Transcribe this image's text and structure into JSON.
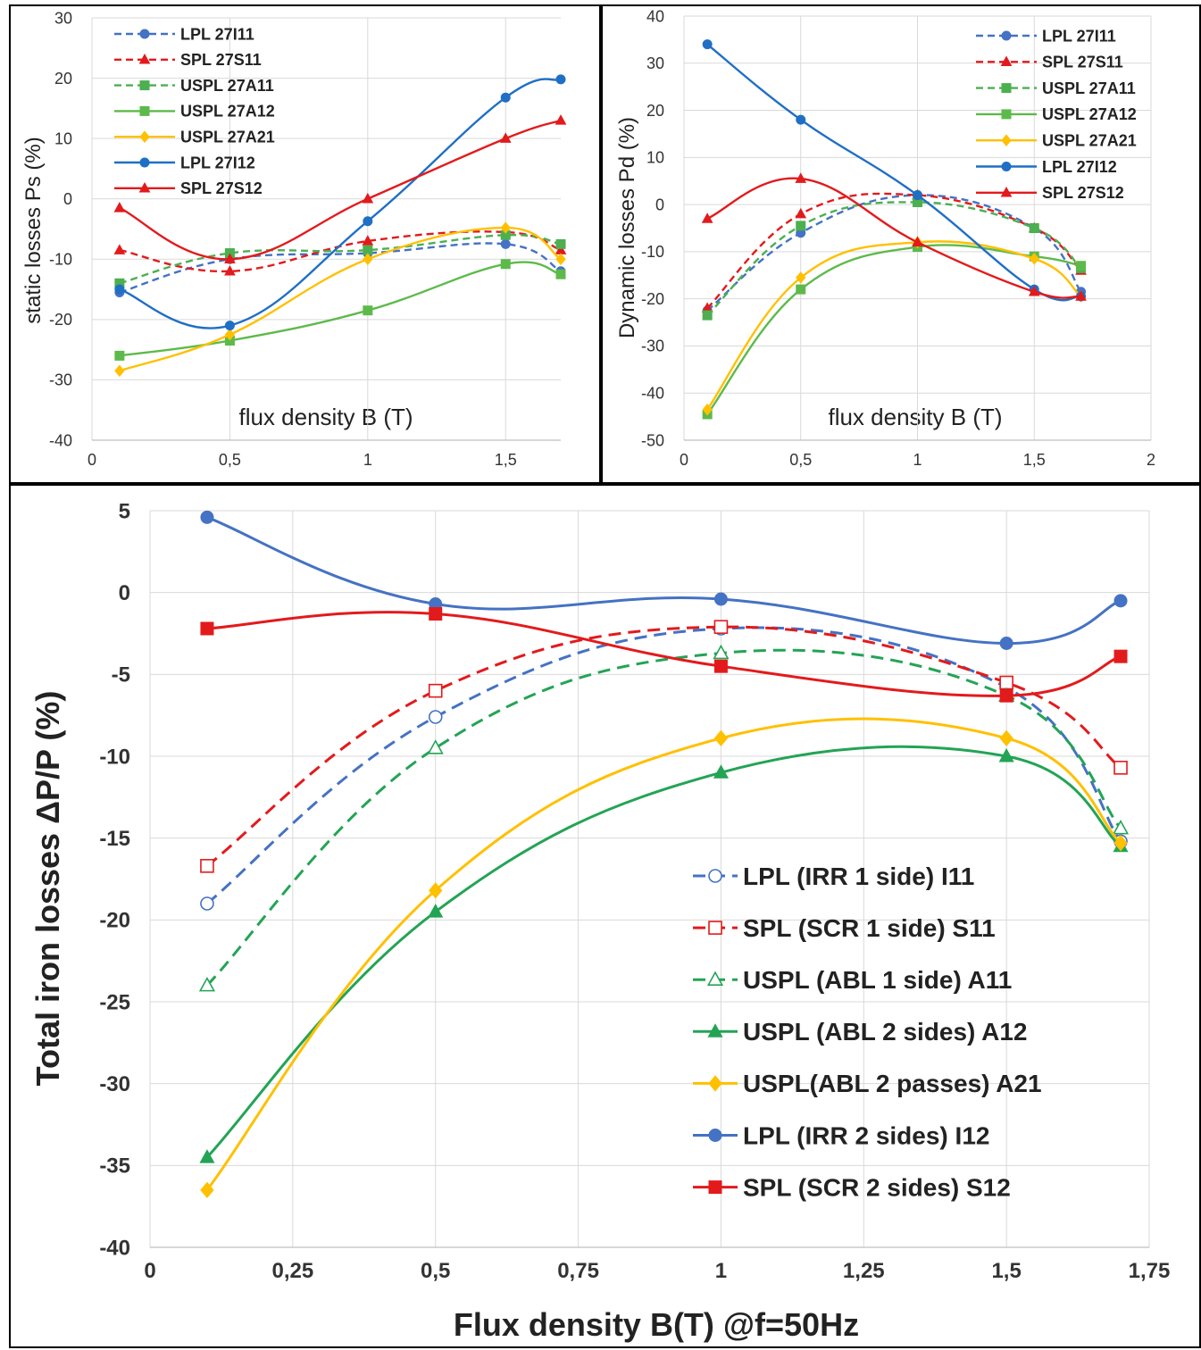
{
  "chart_data": [
    {
      "type": "line",
      "title": "",
      "xlabel": "flux density B (T)",
      "ylabel": "static losses Ps (%)",
      "xlim": [
        0,
        1.7
      ],
      "ylim": [
        -40,
        30
      ],
      "xticks": [
        0,
        0.5,
        1,
        1.5
      ],
      "xtick_labels": [
        "0",
        "0,5",
        "1",
        "1,5"
      ],
      "yticks": [
        -40,
        -30,
        -20,
        -10,
        0,
        10,
        20,
        30
      ],
      "ytick_labels": [
        "-40",
        "-30",
        "-20",
        "-10",
        "0",
        "10",
        "20",
        "30"
      ],
      "grid": true,
      "legend": "top-left",
      "series": [
        {
          "name": "LPL 27I11",
          "color": "#4472C4",
          "dash": "dash",
          "marker": "circle",
          "x": [
            0.1,
            0.5,
            1,
            1.5,
            1.7
          ],
          "y": [
            -15.5,
            -10,
            -9,
            -7.5,
            -12
          ]
        },
        {
          "name": "SPL 27S11",
          "color": "#E31A1C",
          "dash": "dash",
          "marker": "triangle",
          "x": [
            0.1,
            0.5,
            1,
            1.5,
            1.7
          ],
          "y": [
            -8.5,
            -12,
            -7,
            -5.5,
            -8.5
          ]
        },
        {
          "name": "USPL 27A11",
          "color": "#4CAF50",
          "dash": "dash",
          "marker": "square",
          "x": [
            0.1,
            0.5,
            1,
            1.5,
            1.7
          ],
          "y": [
            -14,
            -9,
            -8.5,
            -6,
            -7.5
          ]
        },
        {
          "name": "USPL 27A12",
          "color": "#5DBA4A",
          "dash": "solid",
          "marker": "square",
          "x": [
            0.1,
            0.5,
            1,
            1.5,
            1.7
          ],
          "y": [
            -26,
            -23.5,
            -18.5,
            -10.8,
            -12.5
          ]
        },
        {
          "name": "USPL 27A21",
          "color": "#FFC000",
          "dash": "solid",
          "marker": "diamond",
          "x": [
            0.1,
            0.5,
            1,
            1.5,
            1.7
          ],
          "y": [
            -28.5,
            -22.5,
            -10,
            -4.8,
            -10
          ]
        },
        {
          "name": "LPL 27I12",
          "color": "#1F6FC5",
          "dash": "solid",
          "marker": "circle",
          "x": [
            0.1,
            0.5,
            1,
            1.5,
            1.7
          ],
          "y": [
            -15,
            -21,
            -3.7,
            16.8,
            19.8
          ]
        },
        {
          "name": "SPL 27S12",
          "color": "#E31A1C",
          "dash": "solid",
          "marker": "triangle",
          "x": [
            0.1,
            0.5,
            1,
            1.5,
            1.7
          ],
          "y": [
            -1.5,
            -10,
            0,
            10,
            13
          ]
        }
      ]
    },
    {
      "type": "line",
      "title": "",
      "xlabel": "flux density B (T)",
      "ylabel": "Dynamic losses Pd (%)",
      "xlim": [
        0,
        2
      ],
      "ylim": [
        -50,
        40
      ],
      "xticks": [
        0,
        0.5,
        1,
        1.5,
        2
      ],
      "xtick_labels": [
        "0",
        "0,5",
        "1",
        "1,5",
        "2"
      ],
      "yticks": [
        -50,
        -40,
        -30,
        -20,
        -10,
        0,
        10,
        20,
        30,
        40
      ],
      "ytick_labels": [
        "-50",
        "-40",
        "-30",
        "-20",
        "-10",
        "0",
        "10",
        "20",
        "30",
        "40"
      ],
      "grid": true,
      "legend": "top-right",
      "series": [
        {
          "name": "LPL 27I11",
          "color": "#4472C4",
          "dash": "dash",
          "marker": "circle",
          "x": [
            0.1,
            0.5,
            1,
            1.5,
            1.7
          ],
          "y": [
            -22.5,
            -6,
            2,
            -5,
            -18.5
          ]
        },
        {
          "name": "SPL 27S11",
          "color": "#E31A1C",
          "dash": "dash",
          "marker": "triangle",
          "x": [
            0.1,
            0.5,
            1,
            1.5,
            1.7
          ],
          "y": [
            -22,
            -2,
            2,
            -5,
            -14
          ]
        },
        {
          "name": "USPL 27A11",
          "color": "#4CAF50",
          "dash": "dash",
          "marker": "square",
          "x": [
            0.1,
            0.5,
            1,
            1.5,
            1.7
          ],
          "y": [
            -23.5,
            -4.5,
            0.5,
            -5,
            -13.5
          ]
        },
        {
          "name": "USPL 27A12",
          "color": "#5DBA4A",
          "dash": "solid",
          "marker": "square",
          "x": [
            0.1,
            0.5,
            1,
            1.5,
            1.7
          ],
          "y": [
            -44.5,
            -18,
            -9,
            -11,
            -13
          ]
        },
        {
          "name": "USPL 27A21",
          "color": "#FFC000",
          "dash": "solid",
          "marker": "diamond",
          "x": [
            0.1,
            0.5,
            1,
            1.5,
            1.7
          ],
          "y": [
            -43.5,
            -15.5,
            -8,
            -11.5,
            -19.5
          ]
        },
        {
          "name": "LPL 27I12",
          "color": "#1F6FC5",
          "dash": "solid",
          "marker": "circle",
          "x": [
            0.1,
            0.5,
            1,
            1.5,
            1.7
          ],
          "y": [
            34,
            18,
            2,
            -18,
            -19.5
          ]
        },
        {
          "name": "SPL 27S12",
          "color": "#E31A1C",
          "dash": "solid",
          "marker": "triangle",
          "x": [
            0.1,
            0.5,
            1,
            1.5,
            1.7
          ],
          "y": [
            -3,
            5.5,
            -8,
            -18.5,
            -19.5
          ]
        }
      ]
    },
    {
      "type": "line",
      "title": "",
      "xlabel": "Flux density B(T) @f=50Hz",
      "ylabel": "Total iron losses ΔP/P (%)",
      "xlim": [
        0,
        1.75
      ],
      "ylim": [
        -40,
        5
      ],
      "xticks": [
        0,
        0.25,
        0.5,
        0.75,
        1,
        1.25,
        1.5,
        1.75
      ],
      "xtick_labels": [
        "0",
        "0,25",
        "0,5",
        "0,75",
        "1",
        "1,25",
        "1,5",
        "1,75"
      ],
      "yticks": [
        -40,
        -35,
        -30,
        -25,
        -20,
        -15,
        -10,
        -5,
        0,
        5
      ],
      "ytick_labels": [
        "-40",
        "-35",
        "-30",
        "-25",
        "-20",
        "-15",
        "-10",
        "-5",
        "0",
        "5"
      ],
      "grid": true,
      "legend": "bottom-right",
      "series": [
        {
          "name": "LPL (IRR 1 side) I11",
          "color": "#4472C4",
          "dash": "dash",
          "marker": "circle-open",
          "x": [
            0.1,
            0.5,
            1,
            1.5,
            1.7
          ],
          "y": [
            -19,
            -7.6,
            -2.2,
            -5.8,
            -15.2
          ]
        },
        {
          "name": "SPL (SCR 1 side) S11",
          "color": "#E31A1C",
          "dash": "dash",
          "marker": "square-open",
          "x": [
            0.1,
            0.5,
            1,
            1.5,
            1.7
          ],
          "y": [
            -16.7,
            -6,
            -2.1,
            -5.5,
            -10.7
          ]
        },
        {
          "name": "USPL (ABL 1 side) A11",
          "color": "#23A455",
          "dash": "dash",
          "marker": "triangle-open",
          "x": [
            0.1,
            0.5,
            1,
            1.5,
            1.7
          ],
          "y": [
            -24,
            -9.5,
            -3.7,
            -6.3,
            -14.4
          ]
        },
        {
          "name": "USPL (ABL 2 sides) A12",
          "color": "#23A455",
          "dash": "solid",
          "marker": "triangle",
          "x": [
            0.1,
            0.5,
            1,
            1.5,
            1.7
          ],
          "y": [
            -34.5,
            -19.5,
            -11,
            -10,
            -15.5
          ]
        },
        {
          "name": "USPL(ABL 2 passes) A21",
          "color": "#FFC000",
          "dash": "solid",
          "marker": "diamond",
          "x": [
            0.1,
            0.5,
            1,
            1.5,
            1.7
          ],
          "y": [
            -36.5,
            -18.2,
            -8.9,
            -8.9,
            -15.3
          ]
        },
        {
          "name": "LPL (IRR 2 sides) I12",
          "color": "#4472C4",
          "dash": "solid",
          "marker": "circle",
          "x": [
            0.1,
            0.5,
            1,
            1.5,
            1.7
          ],
          "y": [
            4.6,
            -0.7,
            -0.4,
            -3.1,
            -0.5
          ]
        },
        {
          "name": "SPL (SCR 2 sides) S12",
          "color": "#E31A1C",
          "dash": "solid",
          "marker": "square",
          "x": [
            0.1,
            0.5,
            1,
            1.5,
            1.7
          ],
          "y": [
            -2.2,
            -1.3,
            -4.5,
            -6.3,
            -3.9
          ]
        }
      ]
    }
  ]
}
